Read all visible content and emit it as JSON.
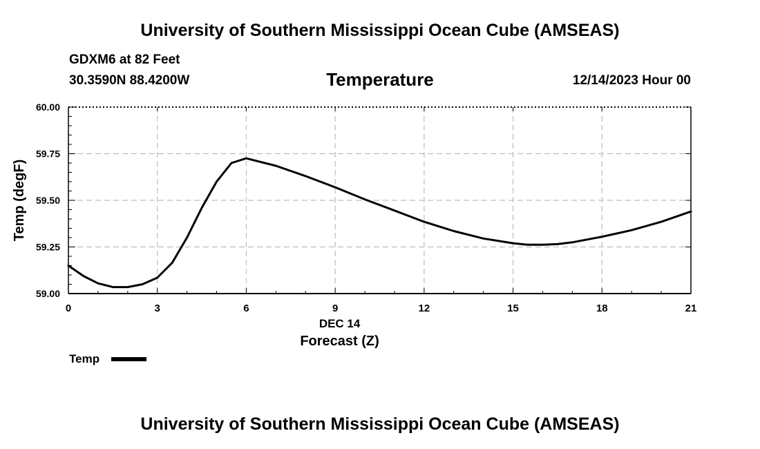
{
  "header": {
    "title_top": "University of Southern Mississippi Ocean Cube (AMSEAS)",
    "station": "GDXM6 at 82 Feet",
    "coords": "30.3590N  88.4200W",
    "datetime": "12/14/2023 Hour 00"
  },
  "footer": {
    "title_bottom": "University of Southern Mississippi Ocean Cube (AMSEAS)"
  },
  "chart_data": {
    "type": "line",
    "title": "Temperature",
    "xlabel": "Forecast (Z)",
    "xlabel_date": "DEC 14",
    "ylabel": "Temp (degF)",
    "xlim": [
      0,
      21
    ],
    "ylim": [
      59.0,
      60.0
    ],
    "xticks": [
      0,
      3,
      6,
      9,
      12,
      15,
      18,
      21
    ],
    "xtick_labels": [
      "0",
      "3",
      "6",
      "9",
      "12",
      "15",
      "18",
      "21"
    ],
    "yticks": [
      59.0,
      59.25,
      59.5,
      59.75,
      60.0
    ],
    "ytick_labels": [
      "59.00",
      "59.25",
      "59.50",
      "59.75",
      "60.00"
    ],
    "grid": true,
    "legend": "bottom-left",
    "series": [
      {
        "name": "Temp",
        "color": "#000000",
        "x": [
          0,
          0.5,
          1,
          1.5,
          2,
          2.5,
          3,
          3.5,
          4,
          4.5,
          5,
          5.5,
          6,
          7,
          8,
          9,
          10,
          11,
          12,
          13,
          14,
          15,
          15.5,
          16,
          16.5,
          17,
          18,
          19,
          20,
          21
        ],
        "y": [
          59.15,
          59.095,
          59.055,
          59.035,
          59.035,
          59.05,
          59.085,
          59.165,
          59.3,
          59.46,
          59.6,
          59.7,
          59.725,
          59.685,
          59.63,
          59.57,
          59.505,
          59.445,
          59.385,
          59.335,
          59.295,
          59.27,
          59.262,
          59.262,
          59.265,
          59.275,
          59.305,
          59.34,
          59.385,
          59.44
        ]
      }
    ]
  }
}
